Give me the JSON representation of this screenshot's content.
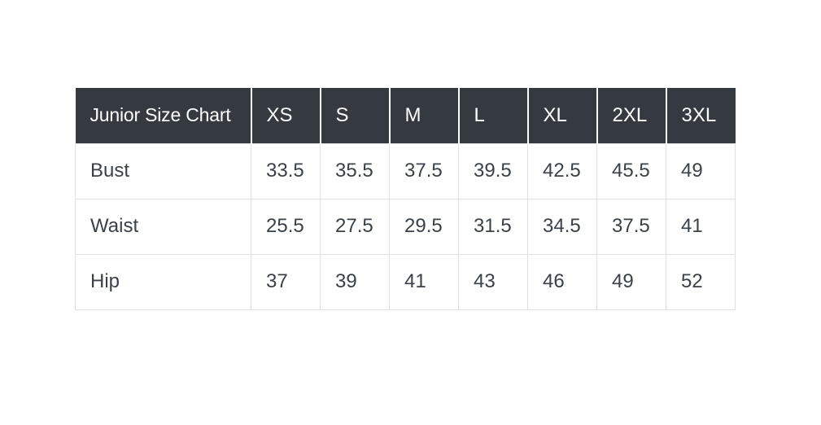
{
  "page": {
    "background": "#ffffff"
  },
  "chart_data": {
    "type": "table",
    "title": "Junior Size Chart",
    "columns": [
      "XS",
      "S",
      "M",
      "L",
      "XL",
      "2XL",
      "3XL"
    ],
    "rows": [
      {
        "label": "Bust",
        "values": [
          "33.5",
          "35.5",
          "37.5",
          "39.5",
          "42.5",
          "45.5",
          "49"
        ]
      },
      {
        "label": "Waist",
        "values": [
          "25.5",
          "27.5",
          "29.5",
          "31.5",
          "34.5",
          "37.5",
          "41"
        ]
      },
      {
        "label": "Hip",
        "values": [
          "37",
          "39",
          "41",
          "43",
          "46",
          "49",
          "52"
        ]
      }
    ],
    "layout": {
      "header_text_align": "left",
      "body_text_align": "left",
      "grid": "on"
    }
  },
  "colors": {
    "page_bg": "#ffffff",
    "header_bg": "#343a40",
    "header_text": "#ffffff",
    "header_divider": "#ffffff",
    "body_text": "#3b4148",
    "border": "#dee2e6"
  }
}
